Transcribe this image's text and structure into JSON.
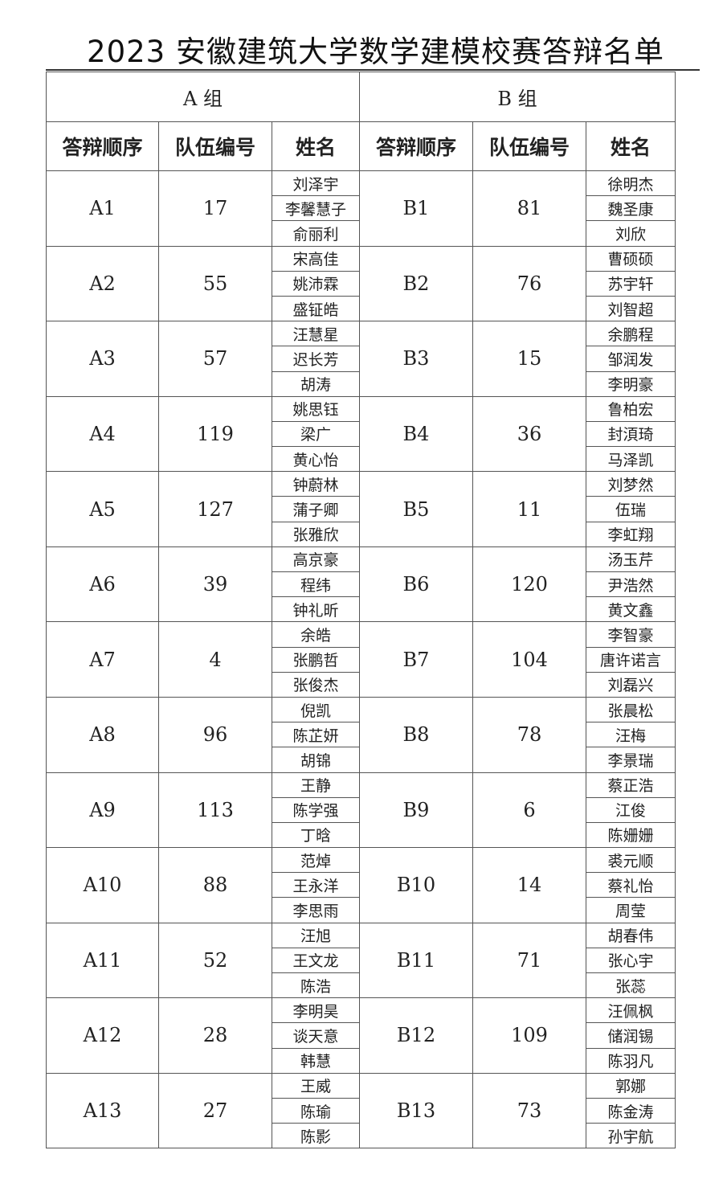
{
  "title": "2023 安徽建筑大学数学建模校赛答辩名单",
  "groups": [
    {
      "label": "A 组"
    },
    {
      "label": "B 组"
    }
  ],
  "headers": [
    "答辩顺序",
    "队伍编号",
    "姓名",
    "答辩顺序",
    "队伍编号",
    "姓名"
  ],
  "rows": [
    {
      "a": {
        "order": "A1",
        "team": "17",
        "names": [
          "刘泽宇",
          "李馨慧子",
          "俞丽利"
        ]
      },
      "b": {
        "order": "B1",
        "team": "81",
        "names": [
          "徐明杰",
          "魏圣康",
          "刘欣"
        ]
      }
    },
    {
      "a": {
        "order": "A2",
        "team": "55",
        "names": [
          "宋高佳",
          "姚沛霖",
          "盛钲皓"
        ]
      },
      "b": {
        "order": "B2",
        "team": "76",
        "names": [
          "曹硕硕",
          "苏宇轩",
          "刘智超"
        ]
      }
    },
    {
      "a": {
        "order": "A3",
        "team": "57",
        "names": [
          "汪慧星",
          "迟长芳",
          "胡涛"
        ]
      },
      "b": {
        "order": "B3",
        "team": "15",
        "names": [
          "余鹏程",
          "邹润发",
          "李明豪"
        ]
      }
    },
    {
      "a": {
        "order": "A4",
        "team": "119",
        "names": [
          "姚思钰",
          "梁广",
          "黄心怡"
        ]
      },
      "b": {
        "order": "B4",
        "team": "36",
        "names": [
          "鲁柏宏",
          "封湏琦",
          "马泽凯"
        ]
      }
    },
    {
      "a": {
        "order": "A5",
        "team": "127",
        "names": [
          "钟蔚林",
          "蒲子卿",
          "张雅欣"
        ]
      },
      "b": {
        "order": "B5",
        "team": "11",
        "names": [
          "刘梦然",
          "伍瑞",
          "李虹翔"
        ]
      }
    },
    {
      "a": {
        "order": "A6",
        "team": "39",
        "names": [
          "高京豪",
          "程纬",
          "钟礼昕"
        ]
      },
      "b": {
        "order": "B6",
        "team": "120",
        "names": [
          "汤玉芹",
          "尹浩然",
          "黄文鑫"
        ]
      }
    },
    {
      "a": {
        "order": "A7",
        "team": "4",
        "names": [
          "余皓",
          "张鹏哲",
          "张俊杰"
        ]
      },
      "b": {
        "order": "B7",
        "team": "104",
        "names": [
          "李智豪",
          "唐许诺言",
          "刘磊兴"
        ]
      }
    },
    {
      "a": {
        "order": "A8",
        "team": "96",
        "names": [
          "倪凯",
          "陈芷妍",
          "胡锦"
        ]
      },
      "b": {
        "order": "B8",
        "team": "78",
        "names": [
          "张晨松",
          "汪梅",
          "李景瑞"
        ]
      }
    },
    {
      "a": {
        "order": "A9",
        "team": "113",
        "names": [
          "王静",
          "陈学强",
          "丁晗"
        ]
      },
      "b": {
        "order": "B9",
        "team": "6",
        "names": [
          "蔡正浩",
          "江俊",
          "陈姗姗"
        ]
      }
    },
    {
      "a": {
        "order": "A10",
        "team": "88",
        "names": [
          "范焯",
          "王永洋",
          "李思雨"
        ]
      },
      "b": {
        "order": "B10",
        "team": "14",
        "names": [
          "裘元顺",
          "蔡礼怡",
          "周莹"
        ]
      }
    },
    {
      "a": {
        "order": "A11",
        "team": "52",
        "names": [
          "汪旭",
          "王文龙",
          "陈浩"
        ]
      },
      "b": {
        "order": "B11",
        "team": "71",
        "names": [
          "胡春伟",
          "张心宇",
          "张蕊"
        ]
      }
    },
    {
      "a": {
        "order": "A12",
        "team": "28",
        "names": [
          "李明昊",
          "谈天意",
          "韩慧"
        ]
      },
      "b": {
        "order": "B12",
        "team": "109",
        "names": [
          "汪佩枫",
          "储润锡",
          "陈羽凡"
        ]
      }
    },
    {
      "a": {
        "order": "A13",
        "team": "27",
        "names": [
          "王威",
          "陈瑜",
          "陈影"
        ]
      },
      "b": {
        "order": "B13",
        "team": "73",
        "names": [
          "郭娜",
          "陈金涛",
          "孙宇航"
        ]
      }
    }
  ]
}
